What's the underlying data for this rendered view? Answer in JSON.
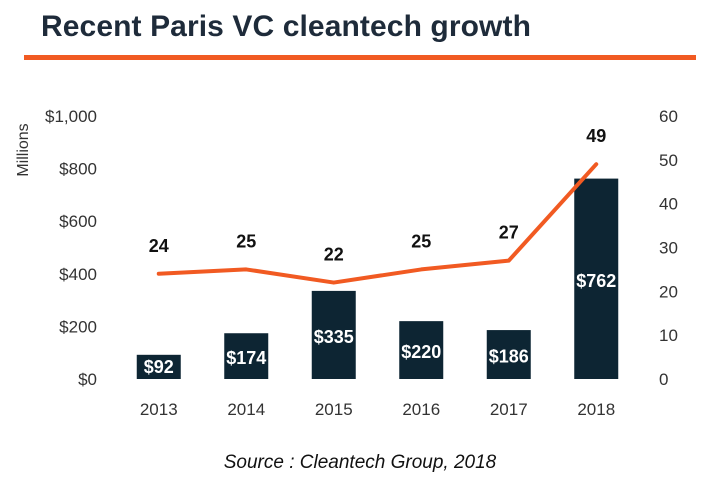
{
  "title": "Recent Paris VC cleantech growth",
  "source": "Source : Cleantech Group, 2018",
  "colors": {
    "title": "#1e2b3a",
    "accent": "#f15a22",
    "bar": "#0d2533",
    "axis_text": "#333333",
    "data_label_light": "#ffffff",
    "data_label_dark": "#111111"
  },
  "chart_data": {
    "type": "bar",
    "categories": [
      "2013",
      "2014",
      "2015",
      "2016",
      "2017",
      "2018"
    ],
    "series": [
      {
        "type": "bar",
        "axis": "left",
        "values": [
          92,
          174,
          335,
          220,
          186,
          762
        ],
        "labels": [
          "$92",
          "$174",
          "$335",
          "$220",
          "$186",
          "$762"
        ]
      },
      {
        "type": "line",
        "axis": "right",
        "values": [
          24,
          25,
          22,
          25,
          27,
          49
        ],
        "labels": [
          "24",
          "25",
          "22",
          "25",
          "27",
          "49"
        ]
      }
    ],
    "ylabel": "Millions",
    "ylim": [
      0,
      1000
    ],
    "yticks": [
      "$0",
      "$200",
      "$400",
      "$600",
      "$800",
      "$1,000"
    ],
    "y2lim": [
      0,
      60
    ],
    "y2ticks": [
      "0",
      "10",
      "20",
      "30",
      "40",
      "50",
      "60"
    ],
    "grid": false,
    "legend": "none"
  }
}
